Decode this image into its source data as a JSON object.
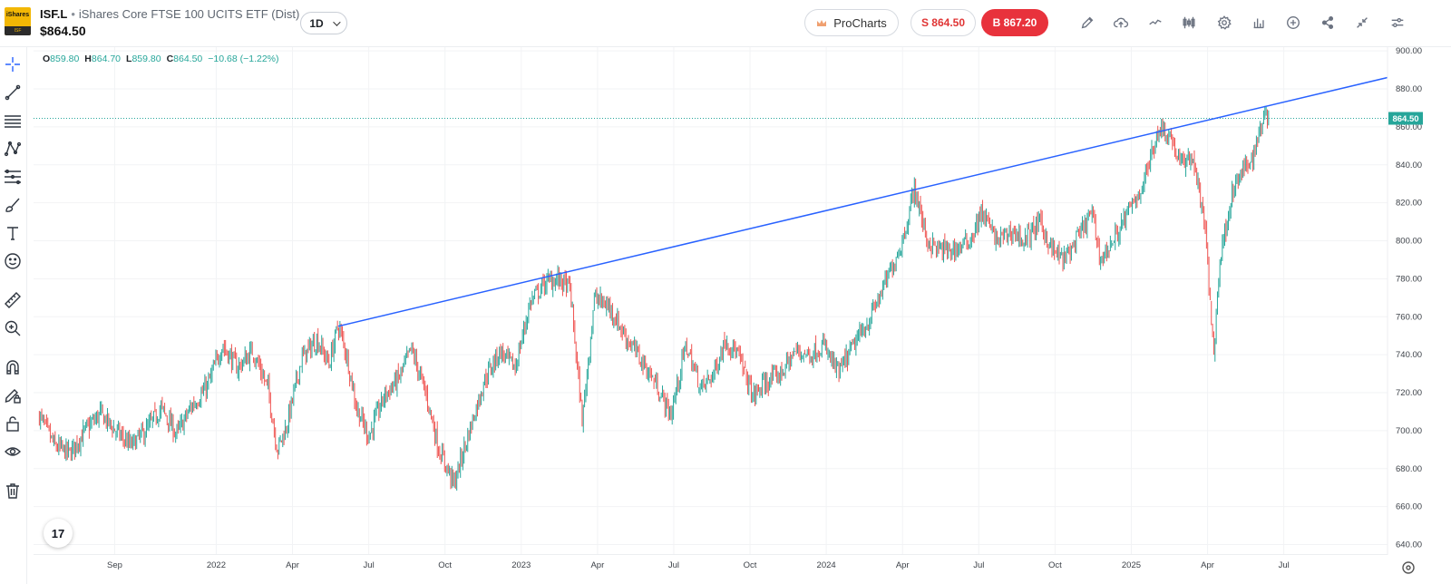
{
  "header": {
    "logo_top": "iShares",
    "logo_bottom": "ISF",
    "symbol": "ISF.L",
    "separator": "•",
    "instrument_name": "iShares Core FTSE 100 UCITS ETF (Dist)",
    "last_price": "$864.50",
    "timeframe": "1D",
    "prochart_label": "ProCharts",
    "sell_label": "S 864.50",
    "buy_label": "B 867.20",
    "toolbar_icons": [
      "pencil-icon",
      "cloud-upload-icon",
      "line-chart-icon",
      "candles-icon",
      "gear-icon",
      "bar-chart-icon",
      "plus-circle-icon",
      "share-icon",
      "collapse-icon",
      "settings-sliders-icon"
    ]
  },
  "sidebar": {
    "tools": [
      "crosshair-icon",
      "trend-line-icon",
      "horizontal-lines-icon",
      "pattern-icon",
      "fib-icon",
      "brush-icon",
      "text-icon",
      "emoji-icon",
      "ruler-icon",
      "zoom-in-icon",
      "magnet-icon",
      "lock-pencil-icon",
      "unlock-icon",
      "eye-icon",
      "trash-icon"
    ]
  },
  "ohlc": {
    "open_key": "O",
    "open": "859.80",
    "high_key": "H",
    "high": "864.70",
    "low_key": "L",
    "low": "859.80",
    "close_key": "C",
    "close": "864.50",
    "change": "−10.68 (−1.22%)"
  },
  "tv_logo": "17",
  "colors": {
    "up": "#26a69a",
    "down": "#ef5350",
    "trendline": "#2962ff",
    "price_tag": "#26a69a",
    "buy": "#e8323c"
  },
  "chart_data": {
    "type": "candlestick",
    "y_axis_ticks": [
      "900.00",
      "880.00",
      "860.00",
      "840.00",
      "820.00",
      "800.00",
      "780.00",
      "760.00",
      "740.00",
      "720.00",
      "700.00",
      "680.00",
      "660.00",
      "640.00"
    ],
    "ylim": [
      635,
      902
    ],
    "x_axis_labels": [
      {
        "label": "Sep",
        "t": 2021.667
      },
      {
        "label": "2022",
        "t": 2022.0
      },
      {
        "label": "Apr",
        "t": 2022.25
      },
      {
        "label": "Jul",
        "t": 2022.5
      },
      {
        "label": "Oct",
        "t": 2022.75
      },
      {
        "label": "2023",
        "t": 2023.0
      },
      {
        "label": "Apr",
        "t": 2023.25
      },
      {
        "label": "Jul",
        "t": 2023.5
      },
      {
        "label": "Oct",
        "t": 2023.75
      },
      {
        "label": "2024",
        "t": 2024.0
      },
      {
        "label": "Apr",
        "t": 2024.25
      },
      {
        "label": "Jul",
        "t": 2024.5
      },
      {
        "label": "Oct",
        "t": 2024.75
      },
      {
        "label": "2025",
        "t": 2025.0
      },
      {
        "label": "Apr",
        "t": 2025.25
      },
      {
        "label": "Jul",
        "t": 2025.5
      }
    ],
    "xlim": [
      2021.41,
      2025.84
    ],
    "last_price_label": "864.50",
    "last_price": 864.5,
    "close_path": [
      [
        2021.42,
        708
      ],
      [
        2021.47,
        692
      ],
      [
        2021.52,
        688
      ],
      [
        2021.57,
        700
      ],
      [
        2021.62,
        709
      ],
      [
        2021.67,
        700
      ],
      [
        2021.72,
        692
      ],
      [
        2021.77,
        700
      ],
      [
        2021.82,
        712
      ],
      [
        2021.87,
        698
      ],
      [
        2021.92,
        713
      ],
      [
        2021.97,
        723
      ],
      [
        2022.02,
        745
      ],
      [
        2022.07,
        733
      ],
      [
        2022.12,
        742
      ],
      [
        2022.17,
        722
      ],
      [
        2022.2,
        690
      ],
      [
        2022.23,
        702
      ],
      [
        2022.28,
        738
      ],
      [
        2022.33,
        748
      ],
      [
        2022.37,
        735
      ],
      [
        2022.4,
        756
      ],
      [
        2022.43,
        738
      ],
      [
        2022.46,
        712
      ],
      [
        2022.5,
        697
      ],
      [
        2022.55,
        718
      ],
      [
        2022.6,
        728
      ],
      [
        2022.64,
        743
      ],
      [
        2022.69,
        718
      ],
      [
        2022.73,
        690
      ],
      [
        2022.78,
        672
      ],
      [
        2022.83,
        700
      ],
      [
        2022.88,
        727
      ],
      [
        2022.93,
        742
      ],
      [
        2022.98,
        733
      ],
      [
        2023.03,
        768
      ],
      [
        2023.08,
        778
      ],
      [
        2023.12,
        780
      ],
      [
        2023.16,
        775
      ],
      [
        2023.2,
        705
      ],
      [
        2023.24,
        770
      ],
      [
        2023.29,
        765
      ],
      [
        2023.34,
        750
      ],
      [
        2023.39,
        738
      ],
      [
        2023.44,
        725
      ],
      [
        2023.49,
        708
      ],
      [
        2023.54,
        745
      ],
      [
        2023.59,
        722
      ],
      [
        2023.63,
        730
      ],
      [
        2023.67,
        748
      ],
      [
        2023.71,
        740
      ],
      [
        2023.76,
        718
      ],
      [
        2023.8,
        725
      ],
      [
        2023.85,
        730
      ],
      [
        2023.9,
        742
      ],
      [
        2023.95,
        740
      ],
      [
        2023.99,
        745
      ],
      [
        2024.04,
        730
      ],
      [
        2024.09,
        745
      ],
      [
        2024.14,
        758
      ],
      [
        2024.2,
        780
      ],
      [
        2024.25,
        800
      ],
      [
        2024.29,
        828
      ],
      [
        2024.33,
        800
      ],
      [
        2024.37,
        795
      ],
      [
        2024.42,
        795
      ],
      [
        2024.47,
        800
      ],
      [
        2024.51,
        815
      ],
      [
        2024.56,
        800
      ],
      [
        2024.61,
        805
      ],
      [
        2024.65,
        800
      ],
      [
        2024.7,
        810
      ],
      [
        2024.74,
        795
      ],
      [
        2024.78,
        790
      ],
      [
        2024.82,
        800
      ],
      [
        2024.87,
        815
      ],
      [
        2024.9,
        790
      ],
      [
        2024.94,
        800
      ],
      [
        2024.99,
        815
      ],
      [
        2025.04,
        830
      ],
      [
        2025.09,
        860
      ],
      [
        2025.13,
        855
      ],
      [
        2025.16,
        840
      ],
      [
        2025.2,
        845
      ],
      [
        2025.24,
        810
      ],
      [
        2025.27,
        740
      ],
      [
        2025.29,
        790
      ],
      [
        2025.33,
        825
      ],
      [
        2025.36,
        835
      ],
      [
        2025.4,
        845
      ],
      [
        2025.44,
        870
      ],
      [
        2025.45,
        864.5
      ]
    ],
    "trendline": {
      "from": [
        2022.4,
        755
      ],
      "to": [
        2025.84,
        886
      ]
    }
  }
}
